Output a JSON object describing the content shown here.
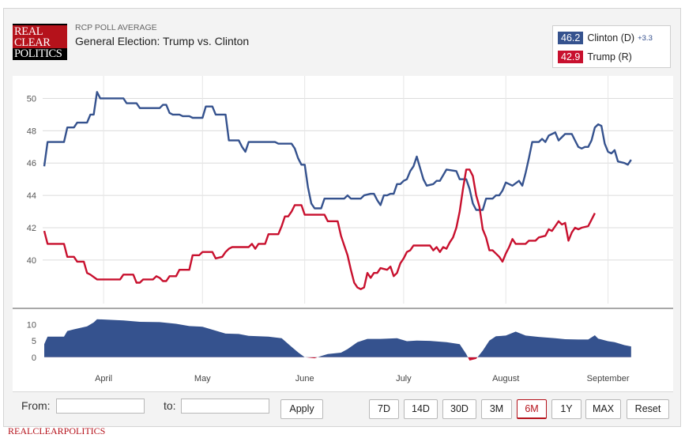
{
  "logo": {
    "line1": "REAL",
    "line2": "CLEAR",
    "line3": "POLITICS"
  },
  "header": {
    "supertitle": "RCP POLL AVERAGE",
    "title": "General Election: Trump vs. Clinton"
  },
  "legend": {
    "clinton": {
      "value": "46.2",
      "label": "Clinton (D)",
      "change": "+3.3",
      "color": "#35528e"
    },
    "trump": {
      "value": "42.9",
      "label": "Trump (R)",
      "color": "#c8102e"
    }
  },
  "controls": {
    "from_label": "From:",
    "to_label": "to:",
    "from_value": "",
    "to_value": "",
    "apply_label": "Apply",
    "ranges": [
      "7D",
      "14D",
      "30D",
      "3M",
      "6M",
      "1Y",
      "MAX"
    ],
    "active_range": "6M",
    "reset_label": "Reset"
  },
  "footer": {
    "text": "REALCLEARPOLITICS"
  },
  "chart_data": {
    "type": "line",
    "x_labels": [
      "April",
      "May",
      "June",
      "July",
      "August",
      "September"
    ],
    "x_label_days": [
      18,
      48,
      79,
      109,
      140,
      171
    ],
    "y_ticks": [
      40,
      42,
      44,
      46,
      48,
      50
    ],
    "ylim": [
      37.5,
      51
    ],
    "xlim": [
      0,
      185
    ],
    "grid": true,
    "series": [
      {
        "name": "Clinton (D)",
        "color": "#35528e",
        "points": [
          [
            0,
            45.8
          ],
          [
            1,
            47.3
          ],
          [
            6,
            47.3
          ],
          [
            7,
            48.2
          ],
          [
            9,
            48.2
          ],
          [
            10,
            48.5
          ],
          [
            13,
            48.5
          ],
          [
            14,
            49
          ],
          [
            15,
            49
          ],
          [
            16,
            50.4
          ],
          [
            17,
            50
          ],
          [
            24,
            50
          ],
          [
            25,
            49.7
          ],
          [
            28,
            49.7
          ],
          [
            29,
            49.4
          ],
          [
            35,
            49.4
          ],
          [
            36,
            49.6
          ],
          [
            37,
            49.6
          ],
          [
            38,
            49.1
          ],
          [
            39,
            49
          ],
          [
            41,
            49
          ],
          [
            42,
            48.9
          ],
          [
            44,
            48.9
          ],
          [
            45,
            48.8
          ],
          [
            48,
            48.8
          ],
          [
            49,
            49.5
          ],
          [
            51,
            49.5
          ],
          [
            52,
            49
          ],
          [
            55,
            49
          ],
          [
            56,
            47.4
          ],
          [
            59,
            47.4
          ],
          [
            60,
            47
          ],
          [
            61,
            46.7
          ],
          [
            62,
            47.3
          ],
          [
            70,
            47.3
          ],
          [
            71,
            47.2
          ],
          [
            75,
            47.2
          ],
          [
            76,
            46.9
          ],
          [
            77,
            46.3
          ],
          [
            78,
            45.9
          ],
          [
            79,
            45.9
          ],
          [
            80,
            44.5
          ],
          [
            81,
            43.5
          ],
          [
            82,
            43.2
          ],
          [
            84,
            43.2
          ],
          [
            85,
            43.8
          ],
          [
            91,
            43.8
          ],
          [
            92,
            44
          ],
          [
            93,
            43.8
          ],
          [
            96,
            43.8
          ],
          [
            97,
            44
          ],
          [
            99,
            44.1
          ],
          [
            100,
            44.1
          ],
          [
            101,
            43.7
          ],
          [
            102,
            43.4
          ],
          [
            103,
            44
          ],
          [
            104,
            44
          ],
          [
            105,
            44.1
          ],
          [
            106,
            44.1
          ],
          [
            107,
            44.7
          ],
          [
            108,
            44.7
          ],
          [
            109,
            44.9
          ],
          [
            110,
            45
          ],
          [
            111,
            45.5
          ],
          [
            112,
            45.8
          ],
          [
            113,
            46.4
          ],
          [
            114,
            45.7
          ],
          [
            115,
            45
          ],
          [
            116,
            44.6
          ],
          [
            118,
            44.7
          ],
          [
            119,
            44.9
          ],
          [
            120,
            44.9
          ],
          [
            122,
            45.6
          ],
          [
            125,
            45.5
          ],
          [
            126,
            45
          ],
          [
            128,
            45
          ],
          [
            129,
            44.4
          ],
          [
            130,
            43.5
          ],
          [
            131,
            43.1
          ],
          [
            133,
            43.1
          ],
          [
            134,
            43.8
          ],
          [
            136,
            43.8
          ],
          [
            137,
            44
          ],
          [
            138,
            44
          ],
          [
            139,
            44.3
          ],
          [
            140,
            44.8
          ],
          [
            142,
            44.6
          ],
          [
            144,
            44.9
          ],
          [
            145,
            44.6
          ],
          [
            146,
            45.4
          ],
          [
            147,
            46.3
          ],
          [
            148,
            47.3
          ],
          [
            150,
            47.3
          ],
          [
            151,
            47.5
          ],
          [
            152,
            47.3
          ],
          [
            153,
            47.7
          ],
          [
            155,
            47.9
          ],
          [
            156,
            47.4
          ],
          [
            158,
            47.8
          ],
          [
            160,
            47.8
          ],
          [
            161,
            47.4
          ],
          [
            162,
            47
          ],
          [
            163,
            46.9
          ],
          [
            164,
            47
          ],
          [
            165,
            47
          ],
          [
            166,
            47.4
          ],
          [
            167,
            48.2
          ],
          [
            168,
            48.4
          ],
          [
            169,
            48.3
          ],
          [
            170,
            47.2
          ],
          [
            171,
            46.7
          ],
          [
            172,
            46.6
          ],
          [
            173,
            46.8
          ],
          [
            174,
            46.1
          ],
          [
            176,
            46
          ],
          [
            177,
            45.9
          ],
          [
            178,
            46.2
          ]
        ]
      },
      {
        "name": "Trump (R)",
        "color": "#c8102e",
        "points": [
          [
            0,
            41.8
          ],
          [
            1,
            41
          ],
          [
            6,
            41
          ],
          [
            7,
            40.2
          ],
          [
            9,
            40.2
          ],
          [
            10,
            39.9
          ],
          [
            12,
            39.9
          ],
          [
            13,
            39.2
          ],
          [
            14,
            39.1
          ],
          [
            16,
            38.8
          ],
          [
            23,
            38.8
          ],
          [
            24,
            39.1
          ],
          [
            27,
            39.1
          ],
          [
            28,
            38.6
          ],
          [
            29,
            38.6
          ],
          [
            30,
            38.8
          ],
          [
            33,
            38.8
          ],
          [
            34,
            39
          ],
          [
            35,
            38.9
          ],
          [
            36,
            38.7
          ],
          [
            37,
            38.7
          ],
          [
            38,
            39
          ],
          [
            40,
            39
          ],
          [
            41,
            39.4
          ],
          [
            44,
            39.4
          ],
          [
            45,
            40.3
          ],
          [
            47,
            40.3
          ],
          [
            48,
            40.5
          ],
          [
            51,
            40.5
          ],
          [
            52,
            40.1
          ],
          [
            54,
            40.2
          ],
          [
            55,
            40.5
          ],
          [
            56,
            40.7
          ],
          [
            57,
            40.8
          ],
          [
            62,
            40.8
          ],
          [
            63,
            41
          ],
          [
            64,
            40.7
          ],
          [
            65,
            41
          ],
          [
            67,
            41
          ],
          [
            68,
            41.6
          ],
          [
            71,
            41.6
          ],
          [
            72,
            42.1
          ],
          [
            73,
            42.7
          ],
          [
            74,
            42.7
          ],
          [
            75,
            43
          ],
          [
            76,
            43.4
          ],
          [
            78,
            43.4
          ],
          [
            79,
            42.8
          ],
          [
            85,
            42.8
          ],
          [
            86,
            42.4
          ],
          [
            89,
            42.4
          ],
          [
            90,
            41.5
          ],
          [
            91,
            40.9
          ],
          [
            92,
            40.3
          ],
          [
            93,
            39.4
          ],
          [
            94,
            38.6
          ],
          [
            95,
            38.3
          ],
          [
            96,
            38.2
          ],
          [
            97,
            38.3
          ],
          [
            98,
            39.2
          ],
          [
            99,
            38.9
          ],
          [
            100,
            39.2
          ],
          [
            101,
            39.2
          ],
          [
            102,
            39.5
          ],
          [
            104,
            39.4
          ],
          [
            105,
            39.6
          ],
          [
            106,
            39
          ],
          [
            107,
            39.2
          ],
          [
            108,
            39.8
          ],
          [
            109,
            40.1
          ],
          [
            110,
            40.5
          ],
          [
            111,
            40.6
          ],
          [
            112,
            40.9
          ],
          [
            117,
            40.9
          ],
          [
            118,
            40.6
          ],
          [
            119,
            40.8
          ],
          [
            120,
            40.5
          ],
          [
            121,
            40.8
          ],
          [
            122,
            40.7
          ],
          [
            123,
            41.1
          ],
          [
            124,
            41.4
          ],
          [
            125,
            42
          ],
          [
            126,
            43
          ],
          [
            127,
            44.4
          ],
          [
            128,
            45.6
          ],
          [
            129,
            45.6
          ],
          [
            130,
            45.2
          ],
          [
            131,
            44
          ],
          [
            132,
            43.3
          ],
          [
            133,
            41.9
          ],
          [
            134,
            41.4
          ],
          [
            135,
            40.6
          ],
          [
            136,
            40.6
          ],
          [
            137,
            40.4
          ],
          [
            138,
            40.2
          ],
          [
            139,
            39.9
          ],
          [
            140,
            40.4
          ],
          [
            141,
            40.8
          ],
          [
            142,
            41.3
          ],
          [
            143,
            41
          ],
          [
            146,
            41
          ],
          [
            147,
            41.2
          ],
          [
            149,
            41.2
          ],
          [
            150,
            41.4
          ],
          [
            152,
            41.5
          ],
          [
            153,
            41.9
          ],
          [
            154,
            41.8
          ],
          [
            155,
            42.1
          ],
          [
            156,
            42.4
          ],
          [
            157,
            42.2
          ],
          [
            158,
            42.3
          ],
          [
            159,
            41.2
          ],
          [
            160,
            41.7
          ],
          [
            161,
            42
          ],
          [
            162,
            41.9
          ],
          [
            163,
            42
          ],
          [
            165,
            42.1
          ],
          [
            166,
            42.5
          ],
          [
            167,
            42.9
          ]
        ]
      }
    ],
    "spread": {
      "y_ticks": [
        0,
        5,
        10
      ],
      "ylim": [
        -1,
        12
      ],
      "color": "#35528e",
      "negative_color": "#c8102e",
      "points": [
        [
          0,
          4
        ],
        [
          1,
          6.3
        ],
        [
          6,
          6.3
        ],
        [
          7,
          8
        ],
        [
          9,
          8.5
        ],
        [
          13,
          9.4
        ],
        [
          15,
          10.6
        ],
        [
          16,
          11.6
        ],
        [
          24,
          11.2
        ],
        [
          29,
          10.8
        ],
        [
          35,
          10.7
        ],
        [
          40,
          10.2
        ],
        [
          44,
          9.5
        ],
        [
          48,
          9.3
        ],
        [
          55,
          7.2
        ],
        [
          59,
          7.1
        ],
        [
          62,
          6.5
        ],
        [
          68,
          6.3
        ],
        [
          72,
          5.8
        ],
        [
          75,
          3.2
        ],
        [
          77,
          1.5
        ],
        [
          79,
          0
        ],
        [
          82,
          -0.3
        ],
        [
          84,
          0.4
        ],
        [
          86,
          1
        ],
        [
          90,
          1.4
        ],
        [
          92,
          2.5
        ],
        [
          95,
          4.6
        ],
        [
          98,
          5.6
        ],
        [
          102,
          5.6
        ],
        [
          107,
          5.8
        ],
        [
          110,
          4.9
        ],
        [
          113,
          5.1
        ],
        [
          117,
          5
        ],
        [
          122,
          4.6
        ],
        [
          126,
          4
        ],
        [
          128,
          1
        ],
        [
          129,
          -1
        ],
        [
          131,
          -0.5
        ],
        [
          133,
          2
        ],
        [
          135,
          5.1
        ],
        [
          137,
          6.4
        ],
        [
          140,
          6.6
        ],
        [
          143,
          7.8
        ],
        [
          146,
          6.6
        ],
        [
          150,
          6.2
        ],
        [
          155,
          5.8
        ],
        [
          158,
          5.5
        ],
        [
          162,
          5.4
        ],
        [
          165,
          5.4
        ],
        [
          167,
          6.7
        ],
        [
          168,
          5.7
        ],
        [
          171,
          4.9
        ],
        [
          173,
          4.6
        ],
        [
          176,
          3.7
        ],
        [
          178,
          3.3
        ]
      ]
    }
  }
}
